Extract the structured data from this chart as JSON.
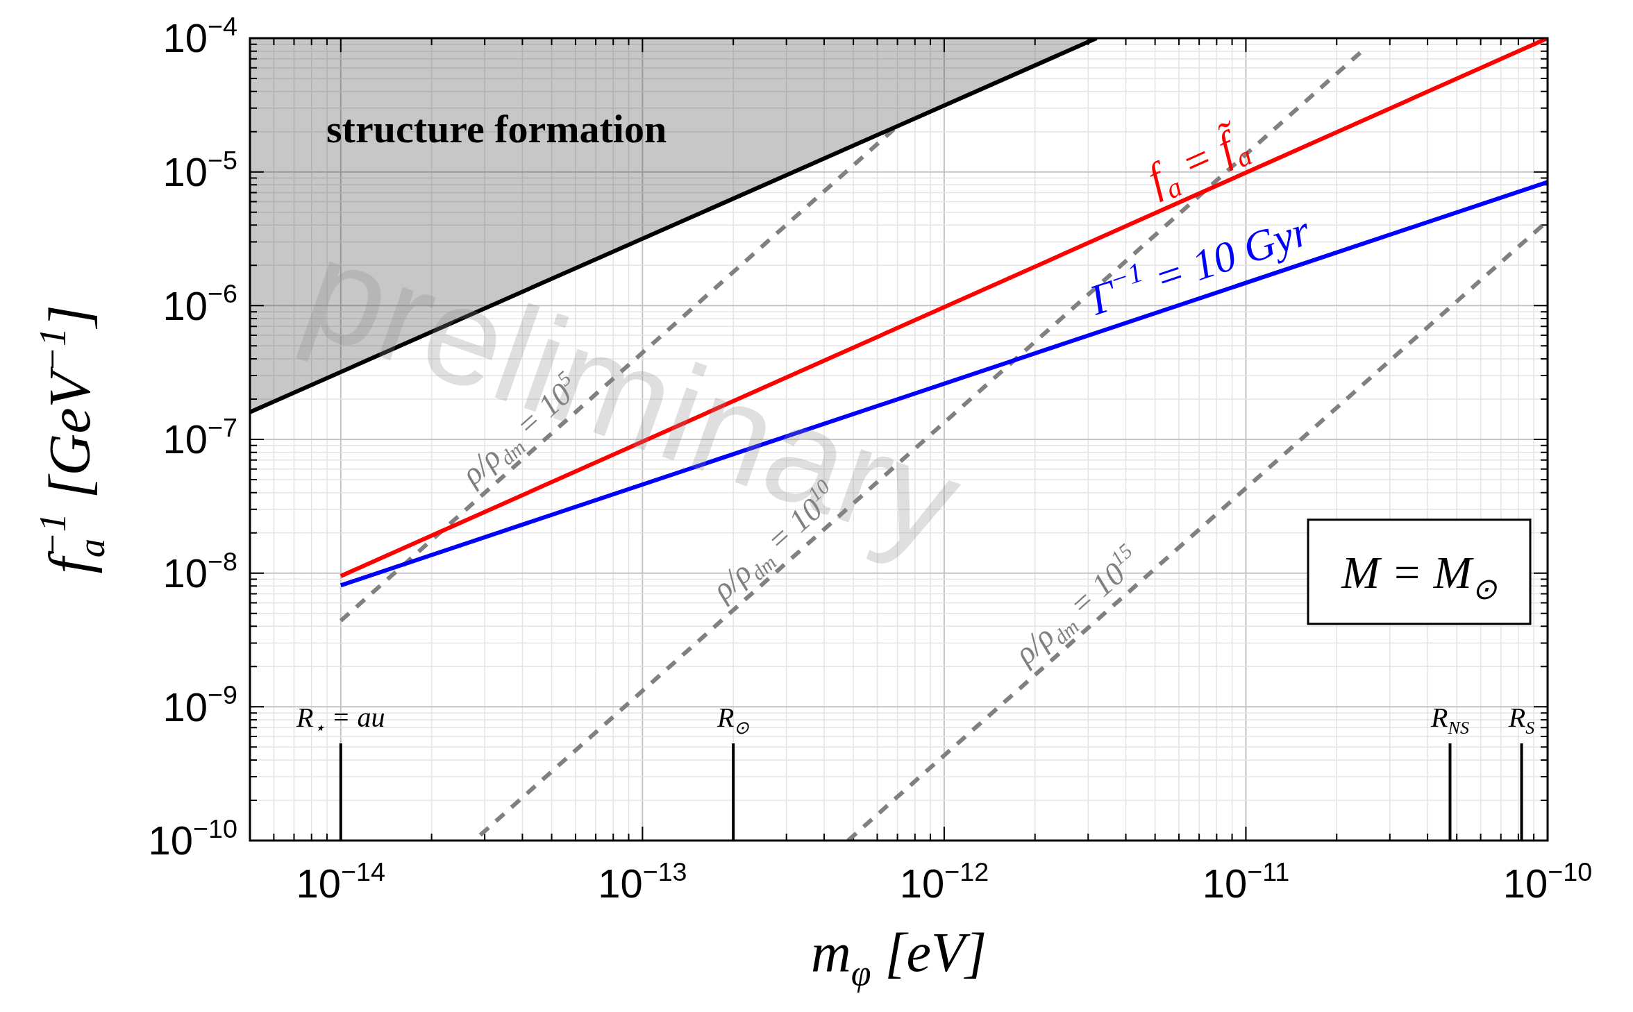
{
  "chart_data": {
    "type": "line",
    "xlabel": "m$_{φ}$ [eV]",
    "ylabel": "f$_{a}$$^{−1}$ [GeV$^{−1}$]",
    "log": "xy",
    "grid": true,
    "legend": false,
    "marker": "none",
    "xlim": [
      5e-15,
      1e-10
    ],
    "xticks": [
      {
        "value": 1e-14,
        "label": "10$^{−14}$"
      },
      {
        "value": 1e-13,
        "label": "10$^{−13}$"
      },
      {
        "value": 1e-12,
        "label": "10$^{−12}$"
      },
      {
        "value": 1e-11,
        "label": "10$^{−11}$"
      },
      {
        "value": 1e-10,
        "label": "10$^{−10}$"
      }
    ],
    "ylim": [
      1e-10,
      0.0001
    ],
    "yticks": [
      {
        "value": 1e-10,
        "label": "10$^{−10}$"
      },
      {
        "value": 1e-09,
        "label": "10$^{−9}$"
      },
      {
        "value": 1e-08,
        "label": "10$^{−8}$"
      },
      {
        "value": 1e-07,
        "label": "10$^{−7}$"
      },
      {
        "value": 1e-06,
        "label": "10$^{−6}$"
      },
      {
        "value": 1e-05,
        "label": "10$^{−5}$"
      },
      {
        "value": 0.0001,
        "label": "10$^{−4}$"
      }
    ],
    "series": [
      {
        "color": "#000000",
        "x": [
          5e-15,
          3.2e-12
        ],
        "values": [
          1.6e-07,
          0.0001
        ],
        "lower": [
          1.6e-07,
          0.0001
        ],
        "upper": [
          0.0001,
          0.0001
        ]
      },
      {
        "name": "f$_{a}$ = f̃$_{a}$",
        "color": "#ff0000",
        "x": [
          1e-14,
          1e-10
        ],
        "values": [
          9.5e-09,
          0.0001
        ]
      },
      {
        "name": "Γ$^{−1}$ = 10 Gyr",
        "color": "#0000ff",
        "x": [
          1e-14,
          1e-10
        ],
        "values": [
          8.1e-09,
          8.4e-06
        ]
      },
      {
        "name": "ρ/ρ$_{dm}$ = 10$^{5}$",
        "color": "#808080",
        "line_style": "dashed",
        "x": [
          1e-14,
          7e-13
        ],
        "values": [
          4.4e-09,
          2.2e-05
        ]
      },
      {
        "name": "ρ/ρ$_{dm}$ = 10$^{10}$",
        "color": "#808080",
        "line_style": "dashed",
        "x": [
          2.9e-14,
          2.5e-11
        ],
        "values": [
          1.1e-10,
          8.5e-05
        ]
      },
      {
        "name": "ρ/ρ$_{dm}$ = 10$^{15}$",
        "color": "#808080",
        "line_style": "dashed",
        "x": [
          4.8e-13,
          1e-10
        ],
        "values": [
          1e-10,
          4.3e-06
        ]
      }
    ],
    "ref_lines": [
      {
        "axis": "x",
        "value": 1e-14,
        "label": "R$_{⋆}$ = au",
        "color": "#000000"
      },
      {
        "axis": "x",
        "value": 2e-13,
        "label": "R$_{⊙}$",
        "color": "#000000"
      },
      {
        "axis": "x",
        "value": 4.75e-11,
        "label": "R$_{NS}$",
        "color": "#000000"
      },
      {
        "axis": "x",
        "value": 8.2e-11,
        "label": "R$_{S}$",
        "color": "#000000"
      }
    ],
    "annotations": [
      "structure formation",
      "M = M$_{⊙}$",
      "preliminary"
    ]
  }
}
